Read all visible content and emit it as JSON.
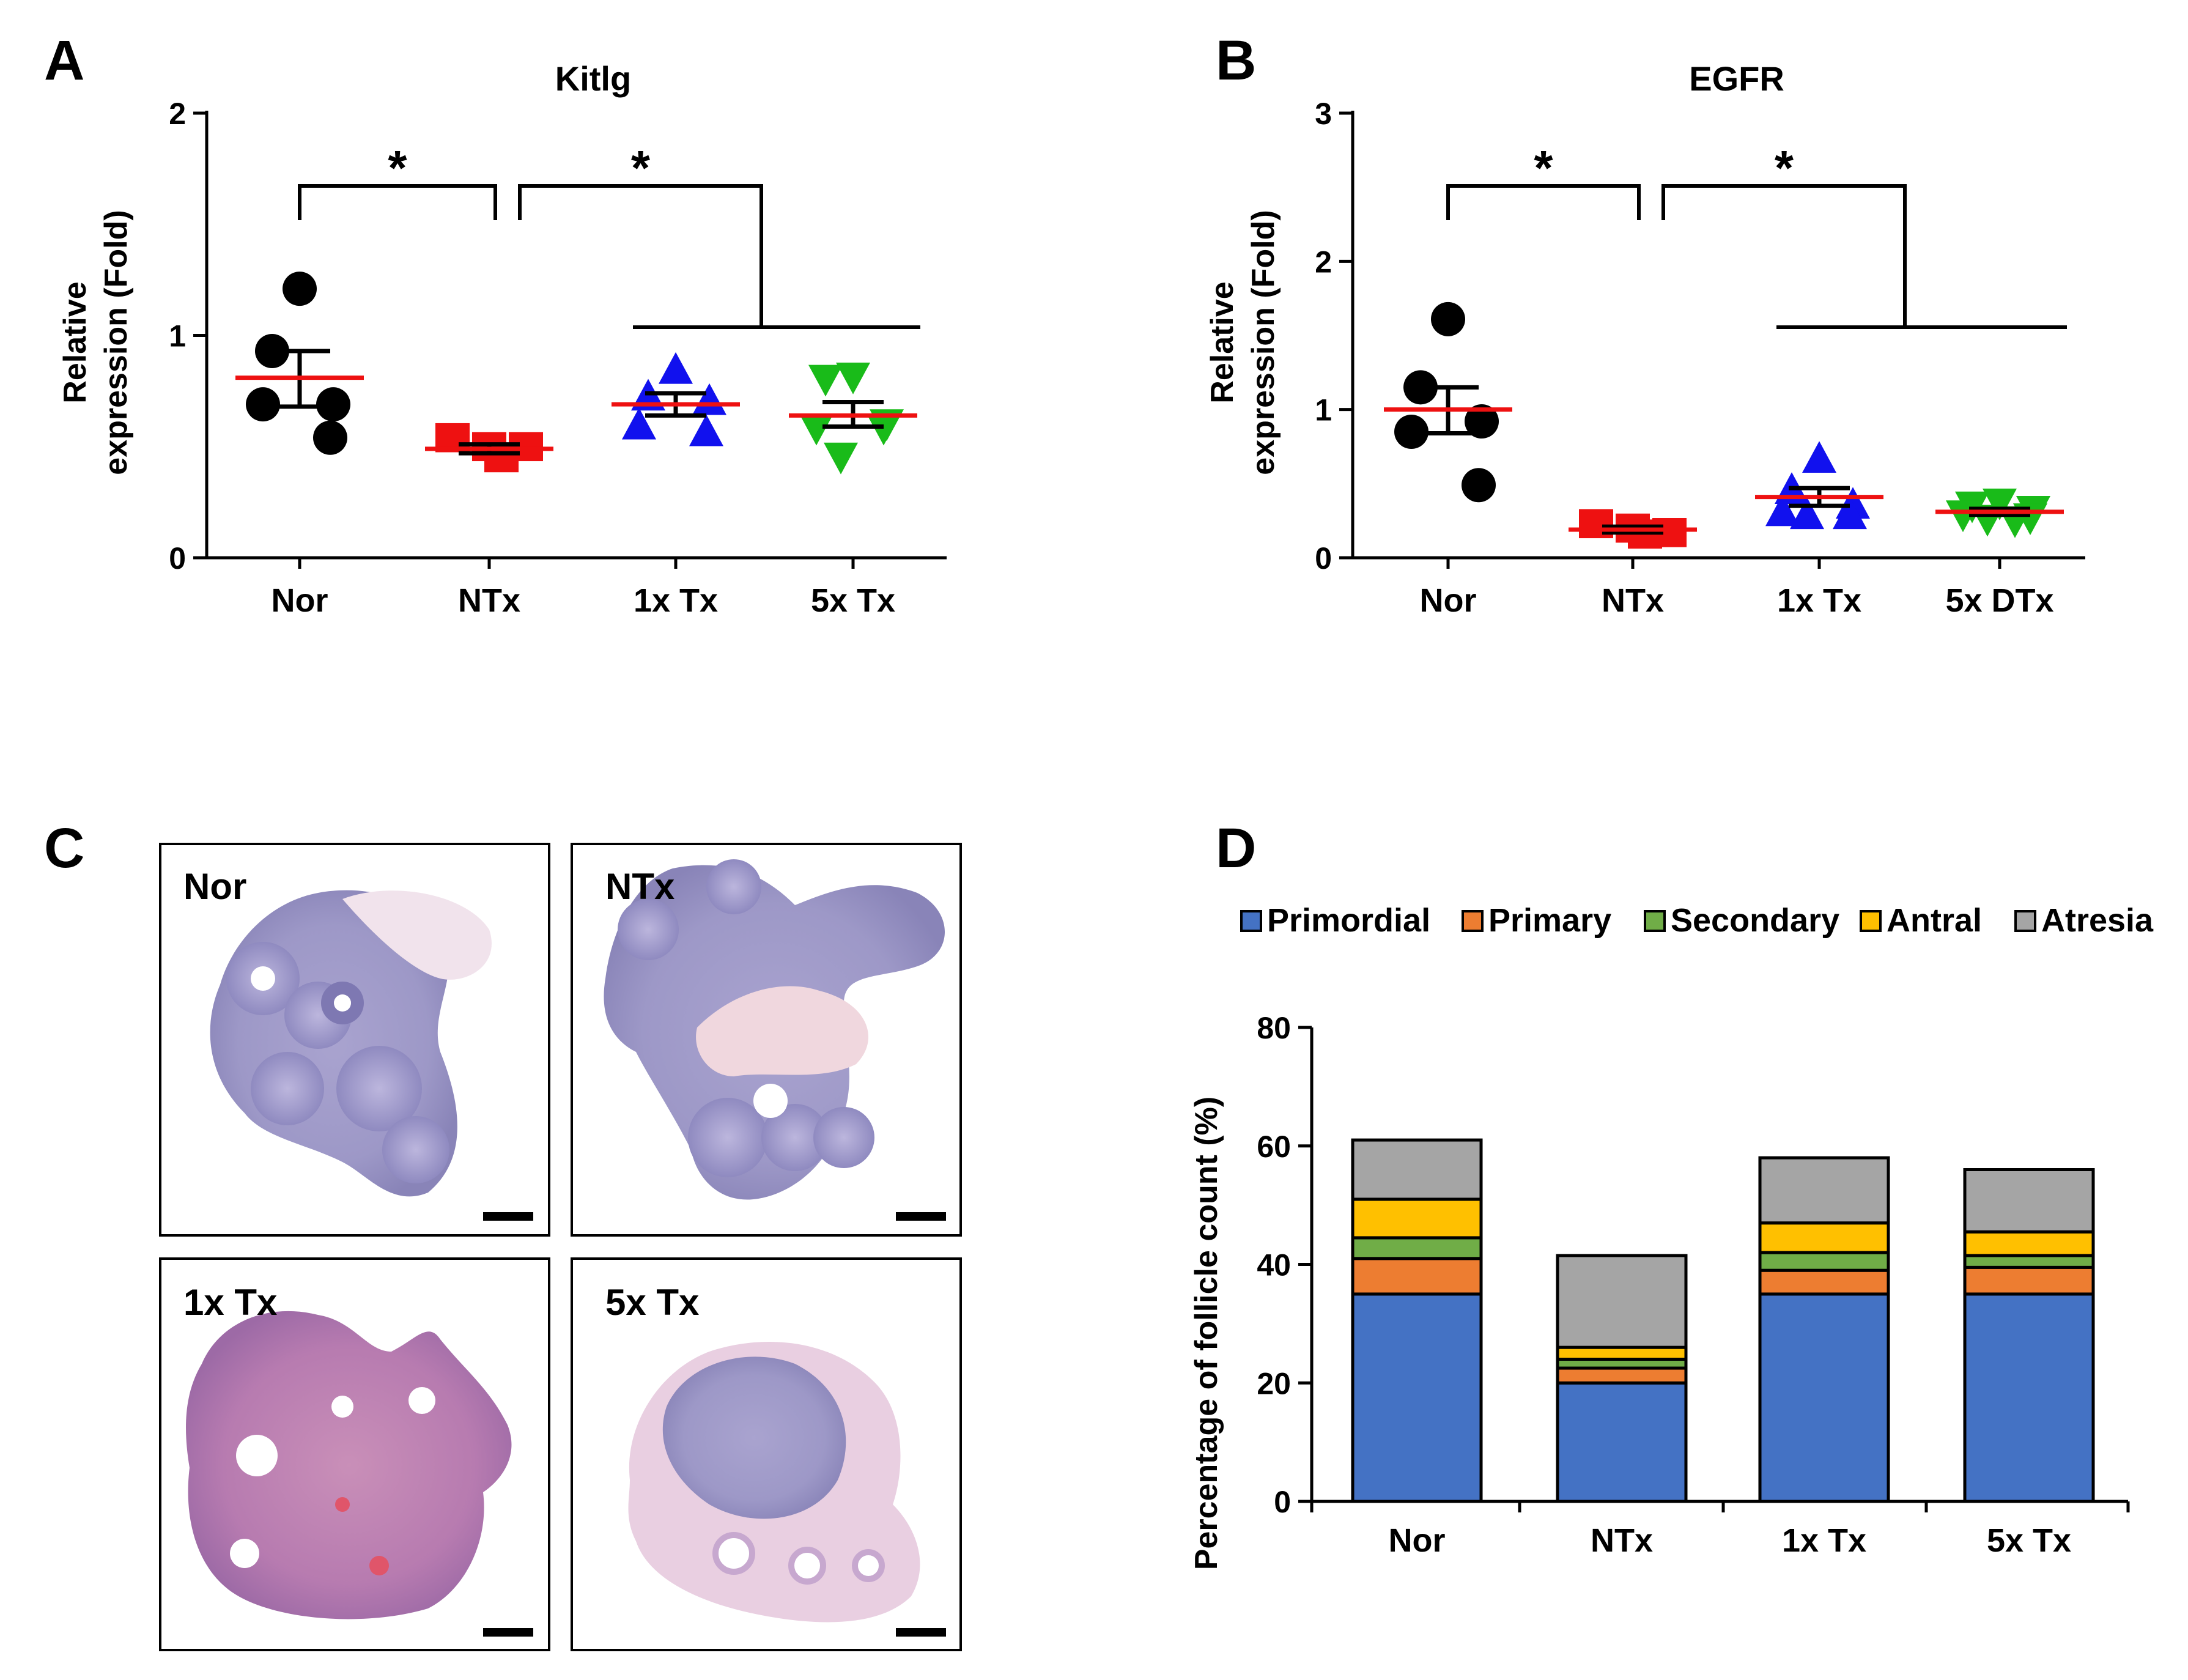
{
  "panels": {
    "a": "A",
    "b": "B",
    "c": "C",
    "d": "D"
  },
  "chart_data": [
    {
      "id": "A",
      "type": "scatter",
      "title": "Kitlg",
      "ylabel": "Relative expression (Fold)",
      "ylabel_lines": [
        "Relative",
        "expression (Fold)"
      ],
      "ylim": [
        0,
        2
      ],
      "yticks": [
        "0",
        "1",
        "2"
      ],
      "categories": [
        "Nor",
        "NTx",
        "1x Tx",
        "5x Tx"
      ],
      "groups": [
        {
          "name": "Nor",
          "marker": "circle",
          "color": "#000000",
          "points": [
            1.21,
            0.93,
            0.69,
            0.69,
            0.54
          ],
          "mean": 0.81,
          "sem_lo": 0.68,
          "sem_hi": 0.93
        },
        {
          "name": "NTx",
          "marker": "square",
          "color": "#ee1111",
          "points": [
            0.54,
            0.5,
            0.5,
            0.45
          ],
          "mean": 0.49,
          "sem_lo": 0.47,
          "sem_hi": 0.51
        },
        {
          "name": "1x Tx",
          "marker": "triangle-up",
          "color": "#1111ee",
          "points": [
            0.84,
            0.72,
            0.7,
            0.59,
            0.56
          ],
          "mean": 0.69,
          "sem_lo": 0.64,
          "sem_hi": 0.74
        },
        {
          "name": "5x Tx",
          "marker": "triangle-down",
          "color": "#19bb19",
          "points": [
            0.82,
            0.81,
            0.61,
            0.59,
            0.59,
            0.46
          ],
          "mean": 0.64,
          "sem_lo": 0.59,
          "sem_hi": 0.7
        }
      ],
      "significance": [
        {
          "label": "*",
          "from": "Nor",
          "to": "NTx"
        },
        {
          "label": "*",
          "from": "NTx",
          "to": [
            "1x Tx",
            "5x Tx"
          ]
        }
      ]
    },
    {
      "id": "B",
      "type": "scatter",
      "title": "EGFR",
      "ylabel": "Relative expression (Fold)",
      "ylabel_lines": [
        "Relative",
        "expression (Fold)"
      ],
      "ylim": [
        0,
        3
      ],
      "yticks": [
        "0",
        "1",
        "2",
        "3"
      ],
      "categories": [
        "Nor",
        "NTx",
        "1x Tx",
        "5x DTx"
      ],
      "groups": [
        {
          "name": "Nor",
          "marker": "circle",
          "color": "#000000",
          "points": [
            1.61,
            1.15,
            0.92,
            0.85,
            0.49
          ],
          "mean": 1.0,
          "sem_lo": 0.84,
          "sem_hi": 1.15
        },
        {
          "name": "NTx",
          "marker": "square",
          "color": "#ee1111",
          "points": [
            0.23,
            0.2,
            0.17,
            0.16
          ],
          "mean": 0.19,
          "sem_lo": 0.17,
          "sem_hi": 0.21
        },
        {
          "name": "1x Tx",
          "marker": "triangle-up",
          "color": "#1111ee",
          "points": [
            0.66,
            0.45,
            0.35,
            0.3,
            0.28,
            0.28
          ],
          "mean": 0.41,
          "sem_lo": 0.35,
          "sem_hi": 0.47
        },
        {
          "name": "5x DTx",
          "marker": "triangle-down",
          "color": "#19bb19",
          "points": [
            0.38,
            0.36,
            0.33,
            0.3,
            0.28,
            0.27,
            0.26
          ],
          "mean": 0.31,
          "sem_lo": 0.29,
          "sem_hi": 0.33
        }
      ],
      "significance": [
        {
          "label": "*",
          "from": "Nor",
          "to": "NTx"
        },
        {
          "label": "*",
          "from": "NTx",
          "to": [
            "1x Tx",
            "5x DTx"
          ]
        }
      ]
    },
    {
      "id": "D",
      "type": "bar",
      "stacked": true,
      "ylabel": "Percentage of follicle count (%)",
      "ylim": [
        0,
        80
      ],
      "yticks": [
        "0",
        "20",
        "40",
        "60",
        "80"
      ],
      "categories": [
        "Nor",
        "NTx",
        "1x Tx",
        "5x Tx"
      ],
      "series": [
        {
          "name": "Primordial",
          "color": "#4472c4",
          "values": [
            35,
            20,
            35,
            35
          ]
        },
        {
          "name": "Primary",
          "color": "#ed7d31",
          "values": [
            6,
            2.5,
            4,
            4.5
          ]
        },
        {
          "name": "Secondary",
          "color": "#70ad47",
          "values": [
            3.5,
            1.5,
            3,
            2
          ]
        },
        {
          "name": "Antral",
          "color": "#ffc000",
          "values": [
            6.5,
            2,
            5,
            4
          ]
        },
        {
          "name": "Atresia",
          "color": "#a5a5a5",
          "values": [
            10,
            15.5,
            11,
            10.5
          ]
        }
      ],
      "legend_position": "top"
    }
  ],
  "histology": {
    "labels": [
      "Nor",
      "NTx",
      "1x Tx",
      "5x Tx"
    ]
  }
}
